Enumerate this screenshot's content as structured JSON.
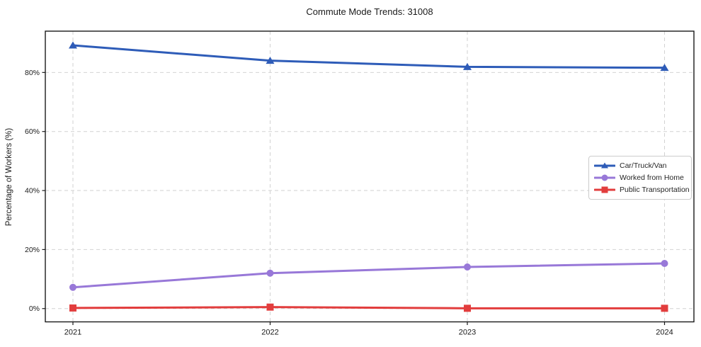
{
  "chart_data": {
    "type": "line",
    "title": "Commute Mode Trends: 31008",
    "xlabel": "",
    "ylabel": "Percentage of Workers (%)",
    "categories": [
      "2021",
      "2022",
      "2023",
      "2024"
    ],
    "y_axis": {
      "ticks": [
        {
          "value": 0,
          "label": "0%"
        },
        {
          "value": 20,
          "label": "20%"
        },
        {
          "value": 40,
          "label": "40%"
        },
        {
          "value": 60,
          "label": "60%"
        },
        {
          "value": 80,
          "label": "80%"
        }
      ],
      "ylim": [
        -4.5,
        94
      ]
    },
    "grid": "dashed",
    "legend_position": "center-right",
    "series": [
      {
        "name": "Car/Truck/Van",
        "marker": "triangle",
        "color": "#2e5cb8",
        "values": [
          89.2,
          84.0,
          81.9,
          81.6
        ]
      },
      {
        "name": "Worked from Home",
        "marker": "circle",
        "color": "#9878d8",
        "values": [
          7.2,
          12.0,
          14.1,
          15.3
        ]
      },
      {
        "name": "Public Transportation",
        "marker": "square",
        "color": "#e23d3d",
        "values": [
          0.2,
          0.5,
          0.1,
          0.1
        ]
      }
    ],
    "colors": {
      "grid": "#d2d2d2",
      "spine": "#1a1a1a",
      "tick_text": "#1a1a1a",
      "background": "#ffffff"
    }
  }
}
